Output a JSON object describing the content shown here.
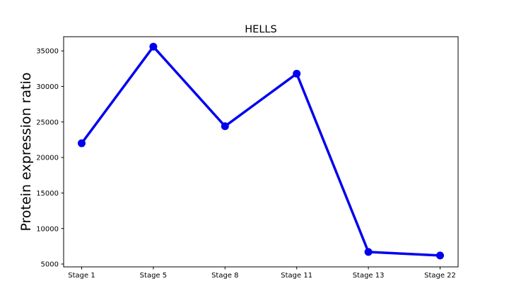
{
  "chart_data": {
    "type": "line",
    "title": "HELLS",
    "xlabel": "",
    "ylabel": "Protein expression ratio",
    "categories": [
      "Stage 1",
      "Stage 5",
      "Stage 8",
      "Stage 11",
      "Stage 13",
      "Stage 22"
    ],
    "series": [
      {
        "values": [
          22000,
          35600,
          24400,
          31800,
          6700,
          6200
        ],
        "color": "#0000ee"
      }
    ],
    "yticks": [
      5000,
      10000,
      15000,
      20000,
      25000,
      30000,
      35000
    ],
    "ylim": [
      4600,
      37000
    ],
    "grid": false,
    "legend": "none"
  }
}
